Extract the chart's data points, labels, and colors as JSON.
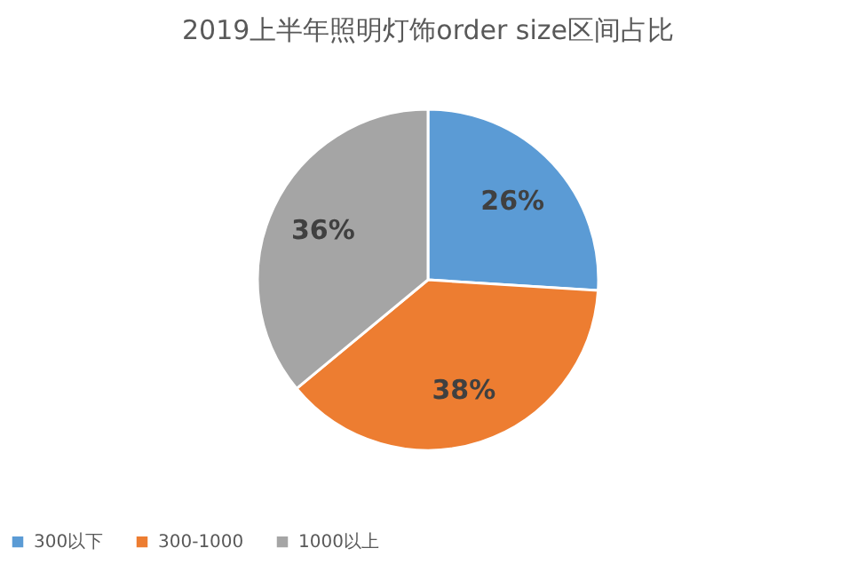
{
  "chart_data": {
    "type": "pie",
    "title": "2019上半年照明灯饰order size区间占比",
    "categories": [
      "300以下",
      "300-1000",
      "1000以上"
    ],
    "values": [
      26,
      38,
      36
    ],
    "colors": [
      "#5b9bd5",
      "#ed7d31",
      "#a5a5a5"
    ],
    "value_labels": [
      "26%",
      "38%",
      "36%"
    ],
    "legend": "bottom"
  }
}
